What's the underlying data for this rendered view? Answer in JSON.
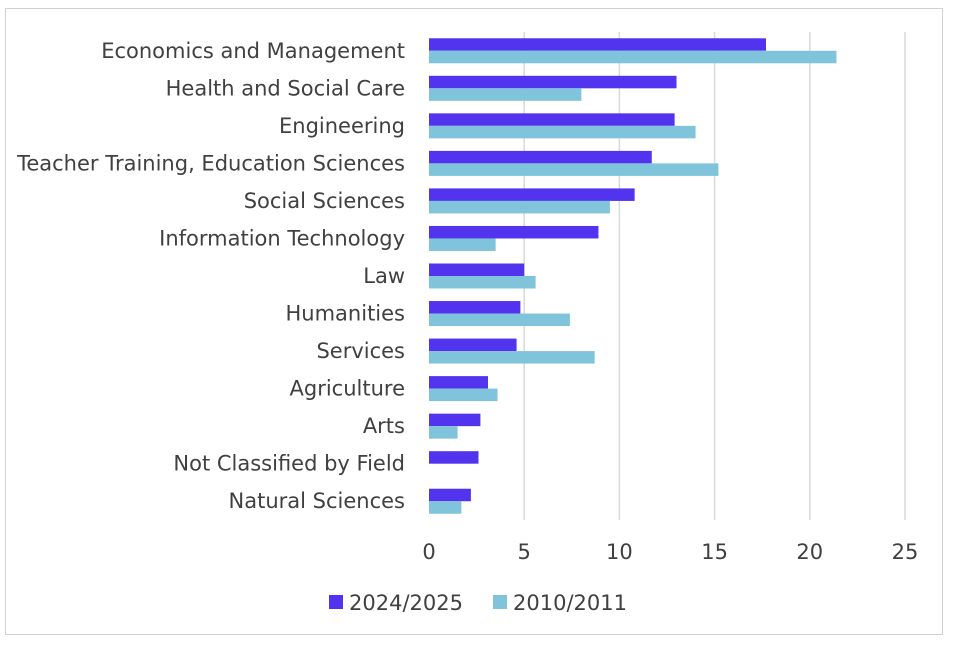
{
  "chart_data": {
    "type": "bar",
    "orientation": "horizontal",
    "title": "",
    "xlabel": "",
    "ylabel": "",
    "categories": [
      "Economics and Management",
      "Health and Social Care",
      "Engineering",
      "Teacher Training, Education Sciences",
      "Social Sciences",
      "Information Technology",
      "Law",
      "Humanities",
      "Services",
      "Agriculture",
      "Arts",
      "Not Classified by Field",
      "Natural Sciences"
    ],
    "series": [
      {
        "name": "2024/2025",
        "color": "#5233ee",
        "values": [
          17.7,
          13.0,
          12.9,
          11.7,
          10.8,
          8.9,
          5.0,
          4.8,
          4.6,
          3.1,
          2.7,
          2.6,
          2.2
        ]
      },
      {
        "name": "2010/2011",
        "color": "#80c4dc",
        "values": [
          21.4,
          8.0,
          14.0,
          15.2,
          9.5,
          3.5,
          5.6,
          7.4,
          8.7,
          3.6,
          1.5,
          0,
          1.7
        ]
      }
    ],
    "xlim": [
      0,
      25
    ],
    "xticks": [
      "0",
      "5",
      "10",
      "15",
      "20",
      "25"
    ],
    "grid": true,
    "legend_position": "bottom"
  }
}
